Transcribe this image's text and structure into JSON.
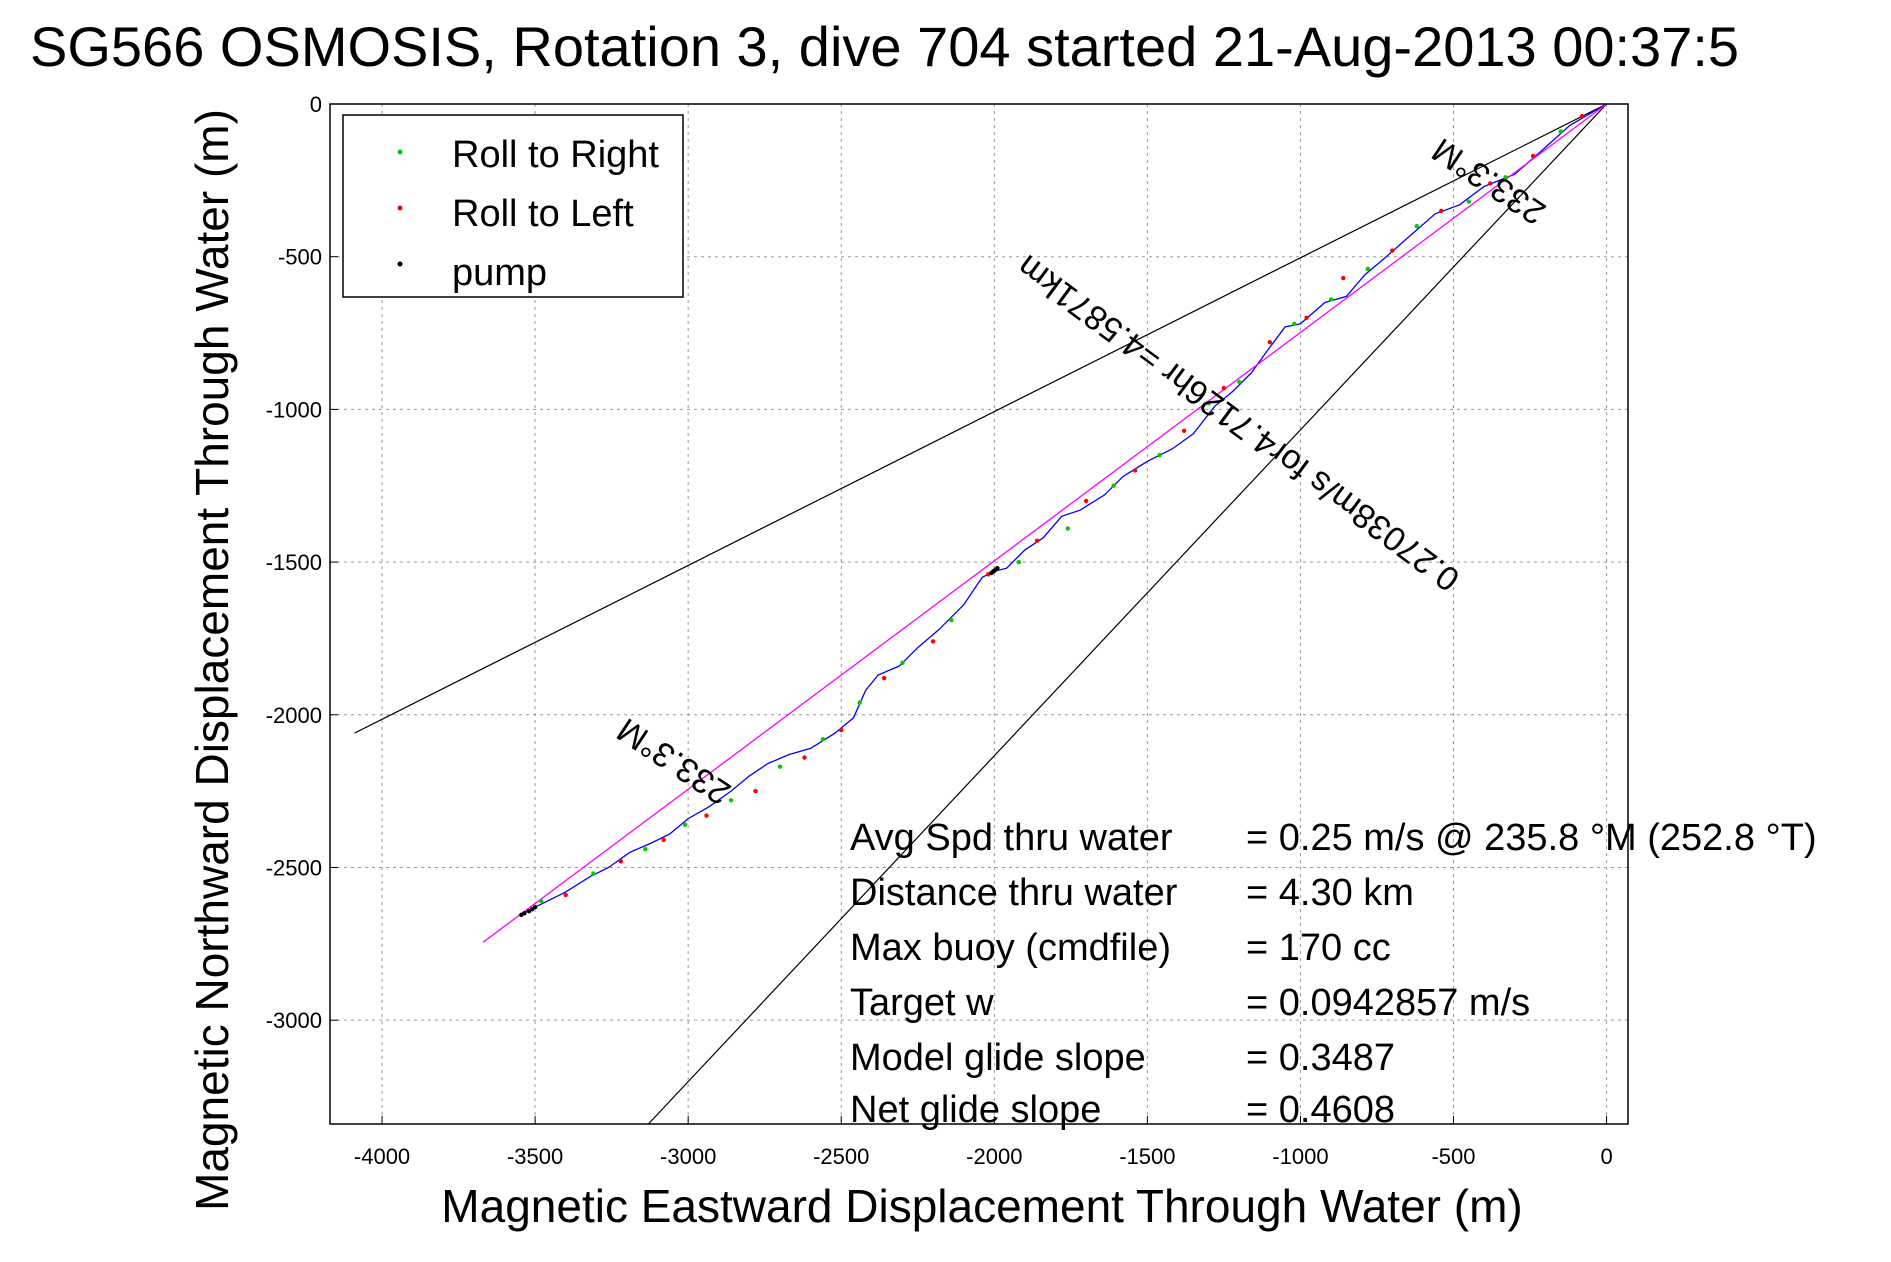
{
  "chart_data": {
    "type": "line",
    "title": "SG566 OSMOSIS, Rotation 3, dive 704 started 21-Aug-2013 00:37:5",
    "xlabel": "Magnetic Eastward Displacement Through Water (m)",
    "ylabel": "Magnetic Northward Displacement Through Water (m)",
    "xlim": [
      -4170,
      70
    ],
    "ylim": [
      -3340,
      0
    ],
    "xticks": [
      -4000,
      -3500,
      -3000,
      -2500,
      -2000,
      -1500,
      -1000,
      -500,
      0
    ],
    "yticks": [
      0,
      -500,
      -1000,
      -1500,
      -2000,
      -2500,
      -3000
    ],
    "xtick_labels": [
      "-4000",
      "-3500",
      "-3000",
      "-2500",
      "-2000",
      "-1500",
      "-1000",
      "-500",
      "0"
    ],
    "ytick_labels": [
      "0",
      "-500",
      "-1000",
      "-1500",
      "-2000",
      "-2500",
      "-3000"
    ],
    "grid": true,
    "legend_position": "top-left",
    "legend": [
      {
        "label": "Roll to Right",
        "color": "#00cc00"
      },
      {
        "label": "Roll to Left",
        "color": "#ff0000"
      },
      {
        "label": "pump",
        "color": "#000000"
      }
    ],
    "series": [
      {
        "color": "#0000ff",
        "x": [
          0,
          -120,
          -220,
          -300,
          -400,
          -480,
          -560,
          -640,
          -720,
          -790,
          -850,
          -920,
          -1000,
          -1050,
          -1110,
          -1160,
          -1220,
          -1280,
          -1350,
          -1420,
          -1500,
          -1580,
          -1640,
          -1720,
          -1780,
          -1840,
          -1900,
          -1960,
          -2000,
          -2040,
          -2100,
          -2180,
          -2250,
          -2310,
          -2380,
          -2420,
          -2460,
          -2520,
          -2600,
          -2670,
          -2740,
          -2800,
          -2860,
          -2930,
          -3000,
          -3060,
          -3120,
          -3190,
          -3260,
          -3320,
          -3400,
          -3460,
          -3520,
          -3545
        ],
        "y": [
          0,
          -70,
          -160,
          -230,
          -270,
          -330,
          -360,
          -430,
          -500,
          -560,
          -630,
          -650,
          -720,
          -730,
          -810,
          -880,
          -940,
          -990,
          -1080,
          -1130,
          -1170,
          -1220,
          -1280,
          -1330,
          -1350,
          -1420,
          -1460,
          -1520,
          -1530,
          -1550,
          -1640,
          -1720,
          -1780,
          -1840,
          -1870,
          -1920,
          -2010,
          -2060,
          -2110,
          -2130,
          -2160,
          -2200,
          -2250,
          -2300,
          -2340,
          -2390,
          -2420,
          -2450,
          -2500,
          -2530,
          -2580,
          -2610,
          -2640,
          -2655
        ]
      },
      {
        "color": "#ff00ff",
        "x": [
          0,
          -3670
        ],
        "y": [
          0,
          -2745
        ]
      }
    ],
    "roll_right_points": {
      "color": "#00cc00",
      "x": [
        -150,
        -330,
        -450,
        -620,
        -780,
        -900,
        -1020,
        -1200,
        -1300,
        -1460,
        -1610,
        -1760,
        -1920,
        -2140,
        -2300,
        -2440,
        -2560,
        -2700,
        -2860,
        -3010,
        -3140,
        -3310,
        -3480
      ],
      "y": [
        -90,
        -240,
        -320,
        -400,
        -540,
        -640,
        -720,
        -910,
        -980,
        -1150,
        -1250,
        -1390,
        -1500,
        -1690,
        -1830,
        -1960,
        -2080,
        -2170,
        -2280,
        -2360,
        -2440,
        -2520,
        -2610
      ]
    },
    "roll_left_points": {
      "color": "#ff0000",
      "x": [
        -80,
        -240,
        -380,
        -540,
        -700,
        -860,
        -980,
        -1100,
        -1250,
        -1380,
        -1540,
        -1700,
        -1860,
        -2020,
        -2200,
        -2360,
        -2500,
        -2620,
        -2780,
        -2940,
        -3080,
        -3220,
        -3400
      ],
      "y": [
        -40,
        -170,
        -260,
        -350,
        -480,
        -570,
        -700,
        -780,
        -930,
        -1070,
        -1200,
        -1300,
        -1430,
        -1540,
        -1760,
        -1880,
        -2050,
        -2140,
        -2250,
        -2330,
        -2410,
        -2480,
        -2590
      ]
    },
    "pump_points": {
      "color": "#000000",
      "x": [
        -1990,
        -1995,
        -2000,
        -2005,
        -2010,
        -3500,
        -3510,
        -3520,
        -3535,
        -3545
      ],
      "y": [
        -1520,
        -1524,
        -1528,
        -1532,
        -1536,
        -2630,
        -2637,
        -2643,
        -2650,
        -2655
      ]
    },
    "heading_cone": {
      "color": "#000000",
      "lines": [
        {
          "x": [
            0,
            -4090
          ],
          "y": [
            0,
            -2060
          ]
        },
        {
          "x": [
            0,
            -3130
          ],
          "y": [
            0,
            -3340
          ]
        }
      ]
    },
    "annotations": {
      "upper_heading": "233.3°M",
      "lower_heading": "233.3°M",
      "distance": "0.27038m/s for4.7126hr =4.5871km"
    },
    "stats": [
      {
        "label": "Avg Spd thru water",
        "value": "=  0.25 m/s @ 235.8 °M (252.8 °T)"
      },
      {
        "label": "Distance thru water",
        "value": "=  4.30 km"
      },
      {
        "label": "Max buoy (cmdfile)",
        "value": "= 170 cc"
      },
      {
        "label": "Target w",
        "value": "= 0.0942857 m/s"
      },
      {
        "label": "Model glide slope",
        "value": "= 0.3487"
      },
      {
        "label": "Net glide slope",
        "value": "= 0.4608"
      }
    ]
  }
}
